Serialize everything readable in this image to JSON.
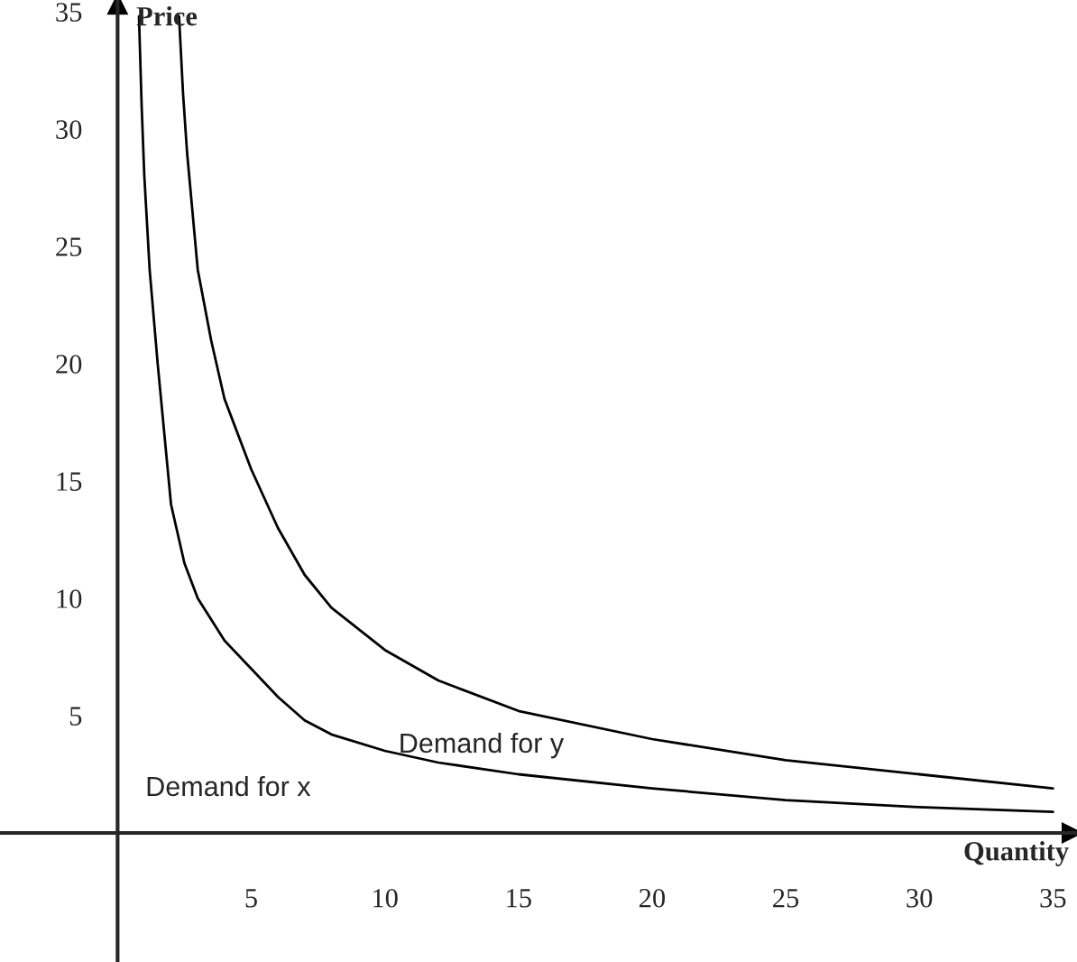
{
  "chart_data": {
    "type": "line",
    "xlabel": "Quantity",
    "ylabel": "Price",
    "series": [
      {
        "color": "#000000",
        "x": [
          0.8,
          0.9,
          1.0,
          1.2,
          1.5,
          2,
          2.5,
          3,
          4,
          5,
          6,
          7,
          8,
          10,
          12,
          15,
          20,
          25,
          30,
          35
        ],
        "values": [
          34.8,
          31,
          28,
          24,
          20,
          14,
          11.5,
          10,
          8.2,
          7,
          5.8,
          4.8,
          4.2,
          3.5,
          3,
          2.5,
          1.9,
          1.4,
          1.1,
          0.9
        ]
      },
      {
        "color": "#000000",
        "x": [
          2.3,
          2.45,
          2.6,
          3,
          3.5,
          4,
          5,
          6,
          7,
          8,
          10,
          12,
          15,
          20,
          25,
          30,
          35
        ],
        "values": [
          34.8,
          31.5,
          29,
          24,
          21,
          18.5,
          15.5,
          13,
          11,
          9.6,
          7.8,
          6.5,
          5.2,
          4,
          3.1,
          2.5,
          1.9
        ]
      }
    ],
    "xlim": [
      -4.4,
      35.9
    ],
    "ylim": [
      -5.5,
      35.5
    ],
    "xticks": [
      5,
      10,
      15,
      20,
      25,
      30,
      35
    ],
    "yticks": [
      5,
      10,
      15,
      20,
      25,
      30,
      35
    ],
    "grid": false,
    "marker": "none",
    "line_style": "solid",
    "annotations": [
      "Demand for y",
      "Demand for x"
    ]
  }
}
